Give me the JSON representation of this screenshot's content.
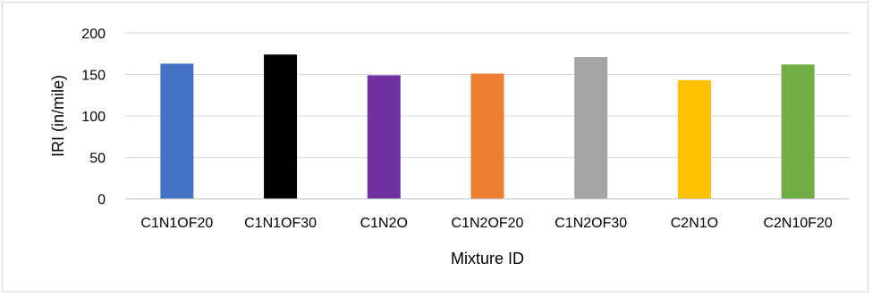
{
  "chart_data": {
    "type": "bar",
    "title": "",
    "xlabel": "Mixture ID",
    "ylabel": "IRI (in/mile)",
    "categories": [
      "C1N1OF20",
      "C1N1OF30",
      "C1N2O",
      "C1N2OF20",
      "C1N2OF30",
      "C2N1O",
      "C2N10F20"
    ],
    "values": [
      163,
      174,
      149,
      151,
      171,
      143,
      162
    ],
    "colors": [
      "#4472c4",
      "#000000",
      "#7030a0",
      "#ed7d31",
      "#a5a5a5",
      "#ffc000",
      "#70ad47"
    ],
    "ylim": [
      0,
      200
    ],
    "yticks": [
      0,
      50,
      100,
      150,
      200
    ],
    "grid": true,
    "legend": "none"
  }
}
